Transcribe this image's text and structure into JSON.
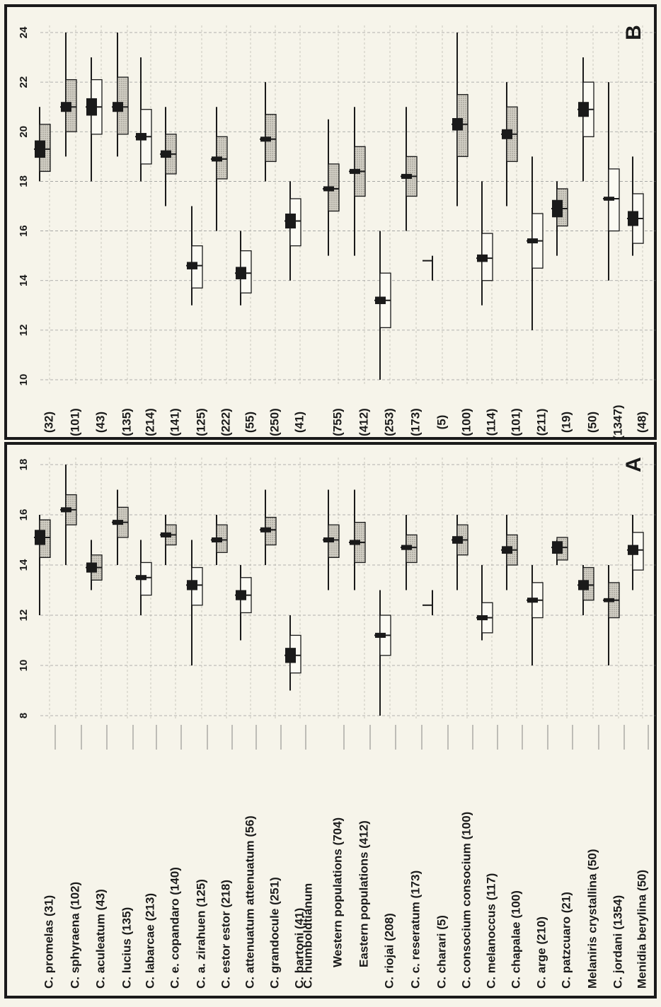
{
  "chart_data": [
    {
      "panel": "A",
      "type": "range",
      "title": "",
      "axis_min": 8,
      "axis_max": 18,
      "ticks": [
        "8",
        "10",
        "12",
        "14",
        "16",
        "18"
      ],
      "grid": true,
      "species": [
        {
          "label": "C. promelas (31)",
          "min": 12,
          "max": 16,
          "sd_low": 14.3,
          "sd_high": 15.8,
          "mean": 15.1,
          "se": 0.3,
          "shade": "stipple"
        },
        {
          "label": "C. sphyraena (102)",
          "min": 14,
          "max": 18,
          "sd_low": 15.6,
          "sd_high": 16.8,
          "mean": 16.2,
          "se": 0.1,
          "shade": "stipple"
        },
        {
          "label": "C. aculeatum (43)",
          "min": 13,
          "max": 15,
          "sd_low": 13.4,
          "sd_high": 14.4,
          "mean": 13.9,
          "se": 0.2,
          "shade": "stipple"
        },
        {
          "label": "C. lucius (135)",
          "min": 14,
          "max": 17,
          "sd_low": 15.1,
          "sd_high": 16.3,
          "mean": 15.7,
          "se": 0.1,
          "shade": "stipple"
        },
        {
          "label": "C. labarcae (213)",
          "min": 12,
          "max": 15,
          "sd_low": 12.8,
          "sd_high": 14.1,
          "mean": 13.5,
          "se": 0.1,
          "shade": "open"
        },
        {
          "label": "C. e. copandaro (140)",
          "min": 14,
          "max": 16,
          "sd_low": 14.8,
          "sd_high": 15.6,
          "mean": 15.2,
          "se": 0.1,
          "shade": "stipple"
        },
        {
          "label": "C. a. zirahuen (125)",
          "min": 10,
          "max": 15,
          "sd_low": 12.4,
          "sd_high": 13.9,
          "mean": 13.2,
          "se": 0.2,
          "shade": "open"
        },
        {
          "label": "C. estor estor (218)",
          "min": 14,
          "max": 16,
          "sd_low": 14.5,
          "sd_high": 15.6,
          "mean": 15.0,
          "se": 0.1,
          "shade": "stipple"
        },
        {
          "label": "C. attenuatum attenuatum (56)",
          "min": 11,
          "max": 14,
          "sd_low": 12.1,
          "sd_high": 13.5,
          "mean": 12.8,
          "se": 0.2,
          "shade": "open"
        },
        {
          "label": "C. grandocule (251)",
          "min": 14,
          "max": 17,
          "sd_low": 14.8,
          "sd_high": 15.9,
          "mean": 15.4,
          "se": 0.1,
          "shade": "stipple"
        },
        {
          "label": "C. bartoni (41)",
          "min": 9,
          "max": 12,
          "sd_low": 9.7,
          "sd_high": 11.2,
          "mean": 10.4,
          "se": 0.3,
          "shade": "open"
        },
        {
          "label": "C. humboldtianum",
          "heading": true
        },
        {
          "label": "Western populations (704)",
          "indent": true,
          "min": 13,
          "max": 17,
          "sd_low": 14.3,
          "sd_high": 15.6,
          "mean": 15.0,
          "se": 0.1,
          "shade": "stipple"
        },
        {
          "label": "Eastern populations (412)",
          "indent": true,
          "min": 13,
          "max": 17,
          "sd_low": 14.1,
          "sd_high": 15.7,
          "mean": 14.9,
          "se": 0.1,
          "shade": "stipple"
        },
        {
          "label": "C. riojai (208)",
          "min": 8,
          "max": 13,
          "sd_low": 10.4,
          "sd_high": 12.0,
          "mean": 11.2,
          "se": 0.1,
          "shade": "open"
        },
        {
          "label": "C. c. reseratum (173)",
          "min": 13,
          "max": 16,
          "sd_low": 14.1,
          "sd_high": 15.2,
          "mean": 14.7,
          "se": 0.1,
          "shade": "stipple"
        },
        {
          "label": "C. charari (5)",
          "min": 12,
          "max": 13,
          "mean": 12.4,
          "tick": true
        },
        {
          "label": "C. consocium consocium (100)",
          "min": 13,
          "max": 16,
          "sd_low": 14.4,
          "sd_high": 15.6,
          "mean": 15.0,
          "se": 0.15,
          "shade": "stipple"
        },
        {
          "label": "C. melanoccus (117)",
          "min": 11,
          "max": 14,
          "sd_low": 11.3,
          "sd_high": 12.5,
          "mean": 11.9,
          "se": 0.1,
          "shade": "open"
        },
        {
          "label": "C. chapalae (100)",
          "min": 13,
          "max": 16,
          "sd_low": 14.0,
          "sd_high": 15.2,
          "mean": 14.6,
          "se": 0.15,
          "shade": "stipple"
        },
        {
          "label": "C. arge (210)",
          "min": 10,
          "max": 14,
          "sd_low": 11.9,
          "sd_high": 13.3,
          "mean": 12.6,
          "se": 0.1,
          "shade": "open"
        },
        {
          "label": "C. patzcuaro (21)",
          "min": 14,
          "max": 15,
          "sd_low": 14.2,
          "sd_high": 15.1,
          "mean": 14.7,
          "se": 0.25,
          "shade": "stipple"
        },
        {
          "label": "Melaniris crystallina (50)",
          "min": 12,
          "max": 14,
          "sd_low": 12.6,
          "sd_high": 13.9,
          "mean": 13.2,
          "se": 0.2,
          "shade": "stipple"
        },
        {
          "label": "C. jordani (1354)",
          "min": 10,
          "max": 14,
          "sd_low": 11.9,
          "sd_high": 13.3,
          "mean": 12.6,
          "se": 0.05,
          "shade": "stipple"
        },
        {
          "label": "Menidia berylina (50)",
          "min": 13,
          "max": 16,
          "sd_low": 13.8,
          "sd_high": 15.3,
          "mean": 14.6,
          "se": 0.2,
          "shade": "open"
        }
      ]
    },
    {
      "panel": "B",
      "type": "range",
      "title": "",
      "axis_min": 10,
      "axis_max": 24,
      "ticks": [
        "10",
        "12",
        "14",
        "16",
        "18",
        "20",
        "22",
        "24"
      ],
      "grid": true,
      "species": [
        {
          "label": "(32)",
          "min": 18,
          "max": 21,
          "sd_low": 18.4,
          "sd_high": 20.3,
          "mean": 19.3,
          "se": 0.35,
          "shade": "stipple"
        },
        {
          "label": "(101)",
          "min": 19,
          "max": 24,
          "sd_low": 20.0,
          "sd_high": 22.1,
          "mean": 21.0,
          "se": 0.2,
          "shade": "stipple"
        },
        {
          "label": "(43)",
          "min": 18,
          "max": 23,
          "sd_low": 19.9,
          "sd_high": 22.1,
          "mean": 21.0,
          "se": 0.35,
          "shade": "open"
        },
        {
          "label": "(135)",
          "min": 19,
          "max": 24,
          "sd_low": 19.9,
          "sd_high": 22.2,
          "mean": 21.0,
          "se": 0.2,
          "shade": "stipple"
        },
        {
          "label": "(214)",
          "min": 18,
          "max": 23,
          "sd_low": 18.7,
          "sd_high": 20.9,
          "mean": 19.8,
          "se": 0.15,
          "shade": "open"
        },
        {
          "label": "(141)",
          "min": 17,
          "max": 21,
          "sd_low": 18.3,
          "sd_high": 19.9,
          "mean": 19.1,
          "se": 0.15,
          "shade": "stipple"
        },
        {
          "label": "(125)",
          "min": 13,
          "max": 17,
          "sd_low": 13.7,
          "sd_high": 15.4,
          "mean": 14.6,
          "se": 0.15,
          "shade": "open"
        },
        {
          "label": "(222)",
          "min": 16,
          "max": 21,
          "sd_low": 18.1,
          "sd_high": 19.8,
          "mean": 18.9,
          "se": 0.1,
          "shade": "stipple"
        },
        {
          "label": "(55)",
          "min": 13,
          "max": 16,
          "sd_low": 13.5,
          "sd_high": 15.2,
          "mean": 14.3,
          "se": 0.25,
          "shade": "open"
        },
        {
          "label": "(250)",
          "min": 18,
          "max": 22,
          "sd_low": 18.8,
          "sd_high": 20.7,
          "mean": 19.7,
          "se": 0.1,
          "shade": "stipple"
        },
        {
          "label": "(41)",
          "min": 14,
          "max": 18,
          "sd_low": 15.4,
          "sd_high": 17.3,
          "mean": 16.4,
          "se": 0.3,
          "shade": "open"
        },
        {
          "label": "",
          "heading": true
        },
        {
          "label": "(755)",
          "min": 15,
          "max": 20.5,
          "sd_low": 16.8,
          "sd_high": 18.7,
          "mean": 17.7,
          "se": 0.1,
          "shade": "stipple"
        },
        {
          "label": "(412)",
          "min": 15,
          "max": 21,
          "sd_low": 17.4,
          "sd_high": 19.4,
          "mean": 18.4,
          "se": 0.1,
          "shade": "stipple"
        },
        {
          "label": "(253)",
          "min": 10,
          "max": 16,
          "sd_low": 12.1,
          "sd_high": 14.3,
          "mean": 13.2,
          "se": 0.15,
          "shade": "open"
        },
        {
          "label": "(173)",
          "min": 16,
          "max": 21,
          "sd_low": 17.4,
          "sd_high": 19.0,
          "mean": 18.2,
          "se": 0.1,
          "shade": "stipple"
        },
        {
          "label": "(5)",
          "min": 14,
          "max": 15,
          "mean": 14.8,
          "tick": true
        },
        {
          "label": "(100)",
          "min": 17,
          "max": 24,
          "sd_low": 19.0,
          "sd_high": 21.5,
          "mean": 20.3,
          "se": 0.25,
          "shade": "stipple"
        },
        {
          "label": "(114)",
          "min": 13,
          "max": 18,
          "sd_low": 14.0,
          "sd_high": 15.9,
          "mean": 14.9,
          "se": 0.15,
          "shade": "open"
        },
        {
          "label": "(101)",
          "min": 17,
          "max": 22,
          "sd_low": 18.8,
          "sd_high": 21.0,
          "mean": 19.9,
          "se": 0.2,
          "shade": "stipple"
        },
        {
          "label": "(211)",
          "min": 12,
          "max": 19,
          "sd_low": 14.5,
          "sd_high": 16.7,
          "mean": 15.6,
          "se": 0.1,
          "shade": "open"
        },
        {
          "label": "(19)",
          "min": 15,
          "max": 18,
          "sd_low": 16.2,
          "sd_high": 17.7,
          "mean": 16.9,
          "se": 0.35,
          "shade": "stipple"
        },
        {
          "label": "(50)",
          "min": 18,
          "max": 23,
          "sd_low": 19.8,
          "sd_high": 22.0,
          "mean": 20.9,
          "se": 0.3,
          "shade": "open"
        },
        {
          "label": "(1347)",
          "min": 14,
          "max": 22,
          "sd_low": 16.0,
          "sd_high": 18.5,
          "mean": 17.3,
          "se": 0.05,
          "shade": "open"
        },
        {
          "label": "(48)",
          "min": 15,
          "max": 19,
          "sd_low": 15.5,
          "sd_high": 17.5,
          "mean": 16.5,
          "se": 0.3,
          "shade": "open"
        }
      ]
    }
  ],
  "panel_labels": {
    "a": "A",
    "b": "B"
  },
  "colors": {
    "ink": "#1a1a1a",
    "paper": "#f6f4ea",
    "stipple": "#c9c6bc",
    "grid": "#9a9a9a"
  }
}
